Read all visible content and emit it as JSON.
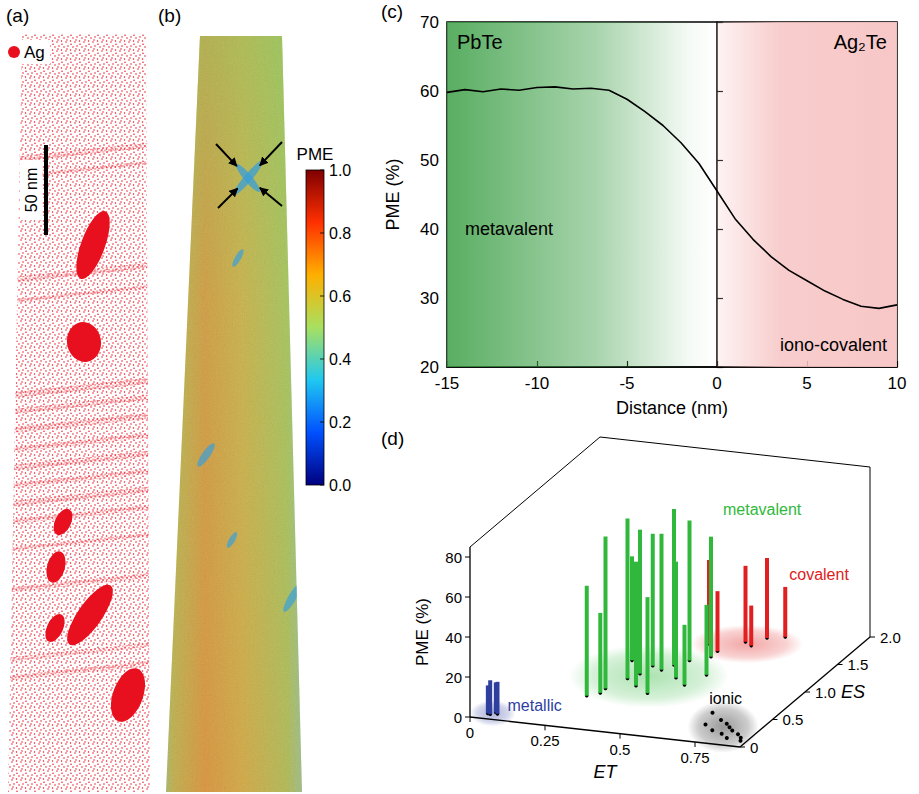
{
  "panel_a": {
    "panel": "(a)",
    "legend": "Ag",
    "color": "#e8101e",
    "scale_bar": "50 nm"
  },
  "panel_b": {
    "panel": "(b)",
    "colorbar": {
      "title": "PME",
      "range": [
        0,
        1
      ],
      "ticks": [
        {
          "value": 0,
          "label": "0.0"
        },
        {
          "value": 0.2,
          "label": "0.2"
        },
        {
          "value": 0.4,
          "label": "0.4"
        },
        {
          "value": 0.6,
          "label": "0.6"
        },
        {
          "value": 0.8,
          "label": "0.8"
        },
        {
          "value": 1,
          "label": "1.0"
        }
      ],
      "colors": [
        "#00007f",
        "#0050ff",
        "#20c8f0",
        "#a8e060",
        "#ffb000",
        "#ff3000",
        "#7f0000"
      ]
    }
  },
  "chart_data": [
    {
      "type": "line",
      "panel": "(c)",
      "x_label": "Distance (nm)",
      "y_label": "PME (%)",
      "x": [
        -15,
        -14,
        -13,
        -12,
        -11,
        -10,
        -9,
        -8,
        -7,
        -6,
        -5,
        -4,
        -3,
        -2,
        -1,
        0,
        1,
        2,
        3,
        4,
        5,
        6,
        7,
        8,
        9,
        10
      ],
      "values": [
        59.8,
        60.2,
        59.9,
        60.3,
        60.1,
        60.5,
        60.6,
        60.3,
        60.4,
        60.1,
        58.8,
        57.0,
        55.0,
        52.5,
        49.5,
        45.5,
        41.5,
        38.5,
        36.0,
        34.0,
        32.5,
        31.0,
        29.8,
        28.8,
        28.5,
        29.0
      ],
      "color": "#000000",
      "xlim": [
        -15,
        10
      ],
      "xticks": [
        -15,
        -10,
        -5,
        0,
        5,
        10
      ],
      "ylim": [
        20,
        70
      ],
      "yticks": [
        20,
        30,
        40,
        50,
        60,
        70
      ],
      "regions": [
        {
          "label": "PbTe",
          "range": [
            -15,
            0
          ],
          "color": "#3c9f46"
        },
        {
          "label": "Ag₂Te",
          "range": [
            0,
            10
          ],
          "color": "#f7c4c4"
        }
      ],
      "annotations": [
        "metavalent",
        "iono-covalent"
      ],
      "grid": false
    },
    {
      "type": "bar3d",
      "panel": "(d)",
      "x_label": "ET",
      "y_label": "ES",
      "z_label": "PME (%)",
      "xlim": [
        0,
        0.9
      ],
      "xticks": [
        0,
        0.25,
        0.5,
        0.75
      ],
      "ylim": [
        0,
        2
      ],
      "yticks": [
        0,
        0.5,
        {
          "value": 1,
          "label": "1.0"
        },
        1.5,
        {
          "value": 2,
          "label": "2.0"
        }
      ],
      "zlim": [
        0,
        85
      ],
      "zticks": [
        0,
        20,
        40,
        60,
        80
      ],
      "series": [
        {
          "name": "metallic",
          "type": "bar",
          "color": "#2e3f9e",
          "values": [
            [
              0.05,
              0.08,
              17
            ],
            [
              0.07,
              0.1,
              16
            ],
            [
              0.06,
              0.12,
              15
            ],
            [
              0.04,
              0.09,
              14
            ]
          ]
        },
        {
          "name": "metavalent",
          "type": "bar",
          "color": "#30b83c",
          "values": [
            [
              0.27,
              0.55,
              55
            ],
            [
              0.3,
              0.7,
              76
            ],
            [
              0.33,
              0.9,
              80
            ],
            [
              0.35,
              1.0,
              72
            ],
            [
              0.4,
              1.1,
              68
            ],
            [
              0.38,
              0.8,
              62
            ],
            [
              0.42,
              1.2,
              78
            ],
            [
              0.45,
              1.3,
              70
            ],
            [
              0.36,
              1.15,
              66
            ],
            [
              0.47,
              1.0,
              58
            ],
            [
              0.5,
              1.4,
              60
            ],
            [
              0.3,
              0.62,
              40
            ],
            [
              0.44,
              0.7,
              48
            ],
            [
              0.55,
              1.1,
              35
            ],
            [
              0.28,
              1.2,
              52
            ],
            [
              0.52,
              0.9,
              30
            ]
          ]
        },
        {
          "name": "covalent",
          "type": "bar",
          "color": "#e02020",
          "values": [
            [
              0.45,
              1.6,
              42
            ],
            [
              0.55,
              1.7,
              38
            ],
            [
              0.6,
              1.8,
              40
            ],
            [
              0.5,
              1.5,
              30
            ],
            [
              0.65,
              1.85,
              25
            ],
            [
              0.58,
              1.65,
              20
            ]
          ]
        },
        {
          "name": "ionic",
          "type": "scatter",
          "marker": "dot",
          "color": "#000000",
          "values": [
            [
              0.7,
              0.5
            ],
            [
              0.72,
              0.3
            ],
            [
              0.75,
              0.4
            ],
            [
              0.76,
              0.22
            ],
            [
              0.78,
              0.35
            ],
            [
              0.8,
              0.3
            ],
            [
              0.8,
              0.18
            ],
            [
              0.82,
              0.25
            ],
            [
              0.83,
              0.12
            ],
            [
              0.85,
              0.2
            ],
            [
              0.87,
              0.15
            ],
            [
              0.88,
              0.1
            ]
          ]
        }
      ]
    }
  ]
}
